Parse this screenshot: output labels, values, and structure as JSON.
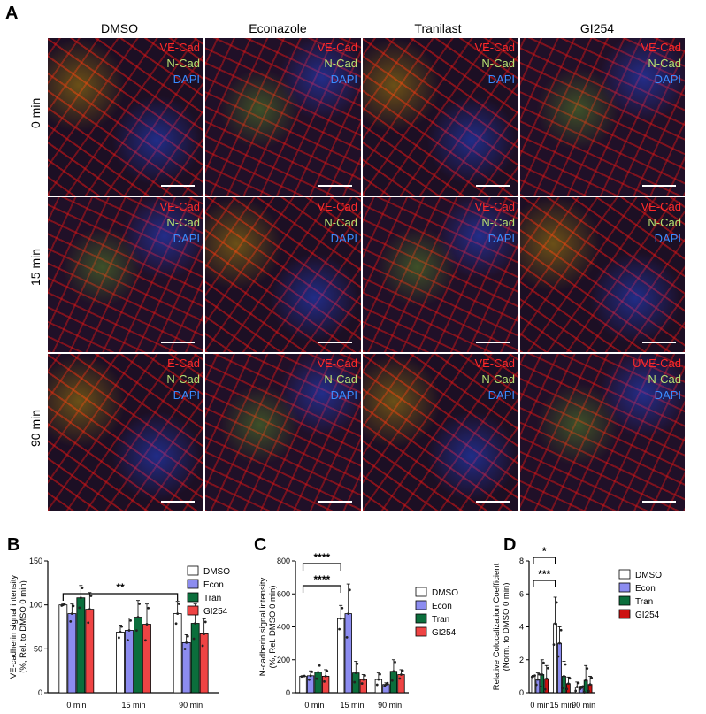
{
  "panel_a": {
    "letter": "A",
    "columns": [
      "DMSO",
      "Econazole",
      "Tranilast",
      "GI254"
    ],
    "rows": [
      "0 min",
      "15 min",
      "90 min"
    ],
    "stain_labels": {
      "ve": "VE-Cad",
      "nc": "N-Cad",
      "dp": "DAPI",
      "ve_r3c1": "E-Cad",
      "ve_r3c4": "UVE-Cad"
    }
  },
  "colors": {
    "DMSO": "#ffffff",
    "Econ": "#8c8cf0",
    "Tran": "#0b6e3c",
    "GI254": "#ef4444",
    "GI254_D": "#cc1111"
  },
  "chart_data": [
    {
      "panel": "B",
      "type": "bar",
      "ylabel": "VE-cadherin signal intensity\n(%, Rel. to DMSO 0 min)",
      "ylim": [
        0,
        150
      ],
      "yticks": [
        0,
        50,
        100,
        150
      ],
      "categories": [
        "0 min",
        "15 min",
        "90 min"
      ],
      "series": [
        {
          "name": "DMSO",
          "values": [
            100,
            69,
            90
          ],
          "err": [
            1,
            8,
            14
          ]
        },
        {
          "name": "Econ",
          "values": [
            90,
            71,
            57
          ],
          "err": [
            11,
            14,
            9
          ]
        },
        {
          "name": "Tran",
          "values": [
            108,
            86,
            79
          ],
          "err": [
            14,
            19,
            22
          ]
        },
        {
          "name": "GI254",
          "values": [
            95,
            78,
            67
          ],
          "err": [
            19,
            23,
            17
          ]
        }
      ],
      "significance": [
        {
          "label": "**",
          "from": "0 min",
          "to": "90 min"
        }
      ],
      "legend": "top-right"
    },
    {
      "panel": "C",
      "type": "bar",
      "ylabel": "N-cadherin signal intensity\n(%, Rel. DMSO 0 min)",
      "ylim": [
        0,
        800
      ],
      "yticks": [
        0,
        200,
        400,
        600,
        800
      ],
      "categories": [
        "0 min",
        "15 min",
        "90 min"
      ],
      "series": [
        {
          "name": "DMSO",
          "values": [
            100,
            450,
            80
          ],
          "err": [
            2,
            80,
            40
          ]
        },
        {
          "name": "Econ",
          "values": [
            103,
            480,
            50
          ],
          "err": [
            30,
            180,
            10
          ]
        },
        {
          "name": "Tran",
          "values": [
            125,
            120,
            130
          ],
          "err": [
            50,
            70,
            70
          ]
        },
        {
          "name": "GI254",
          "values": [
            100,
            80,
            110
          ],
          "err": [
            40,
            30,
            30
          ]
        }
      ],
      "significance": [
        {
          "label": "****",
          "from": "0 min",
          "to": "15 min"
        },
        {
          "label": "****",
          "from": "0 min",
          "to": "15 min"
        }
      ],
      "legend": "top-right"
    },
    {
      "panel": "D",
      "type": "bar",
      "ylabel": "Relative Colocalization Coefficient\n(Norm. to DMSO 0 min)",
      "ylim": [
        0,
        8
      ],
      "yticks": [
        0,
        2,
        4,
        6,
        8
      ],
      "categories": [
        "0 min",
        "15 min",
        "90 min"
      ],
      "series": [
        {
          "name": "DMSO",
          "values": [
            1.0,
            4.2,
            0.35
          ],
          "err": [
            0.05,
            1.6,
            0.3
          ]
        },
        {
          "name": "Econ",
          "values": [
            0.8,
            3.0,
            0.3
          ],
          "err": [
            0.4,
            1.0,
            0.1
          ]
        },
        {
          "name": "Tran",
          "values": [
            1.1,
            1.0,
            0.75
          ],
          "err": [
            0.9,
            0.9,
            0.9
          ]
        },
        {
          "name": "GI254",
          "values": [
            0.85,
            0.55,
            0.5
          ],
          "err": [
            0.8,
            0.4,
            0.5
          ]
        }
      ],
      "significance": [
        {
          "label": "*",
          "from": "0 min",
          "to": "15 min"
        },
        {
          "label": "***",
          "from": "0 min",
          "to": "15 min"
        }
      ],
      "legend": "top-right"
    }
  ]
}
